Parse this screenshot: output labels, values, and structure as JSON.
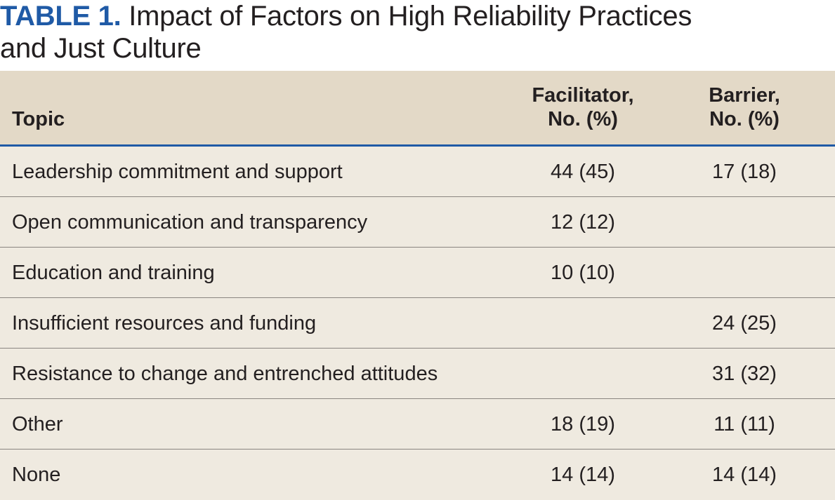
{
  "title": {
    "label": "TABLE 1.",
    "line1": "Impact of Factors on High Reliability Practices",
    "line2": "and Just Culture"
  },
  "colors": {
    "accent": "#1f5aa6",
    "header_bg": "#e3d9c7",
    "body_bg": "#efeae0",
    "rule": "#8a8580"
  },
  "table": {
    "headers": {
      "topic": "Topic",
      "facilitator_line1": "Facilitator,",
      "facilitator_line2": "No. (%)",
      "barrier_line1": "Barrier,",
      "barrier_line2": "No. (%)"
    },
    "rows": [
      {
        "topic": "Leadership commitment and support",
        "facilitator": "44 (45)",
        "barrier": "17 (18)"
      },
      {
        "topic": "Open communication and transparency",
        "facilitator": "12 (12)",
        "barrier": ""
      },
      {
        "topic": "Education and training",
        "facilitator": "10 (10)",
        "barrier": ""
      },
      {
        "topic": "Insufficient resources and funding",
        "facilitator": "",
        "barrier": "24 (25)"
      },
      {
        "topic": "Resistance to change and entrenched attitudes",
        "facilitator": "",
        "barrier": "31 (32)"
      },
      {
        "topic": "Other",
        "facilitator": "18 (19)",
        "barrier": "11 (11)"
      },
      {
        "topic": "None",
        "facilitator": "14 (14)",
        "barrier": "14 (14)"
      }
    ]
  }
}
